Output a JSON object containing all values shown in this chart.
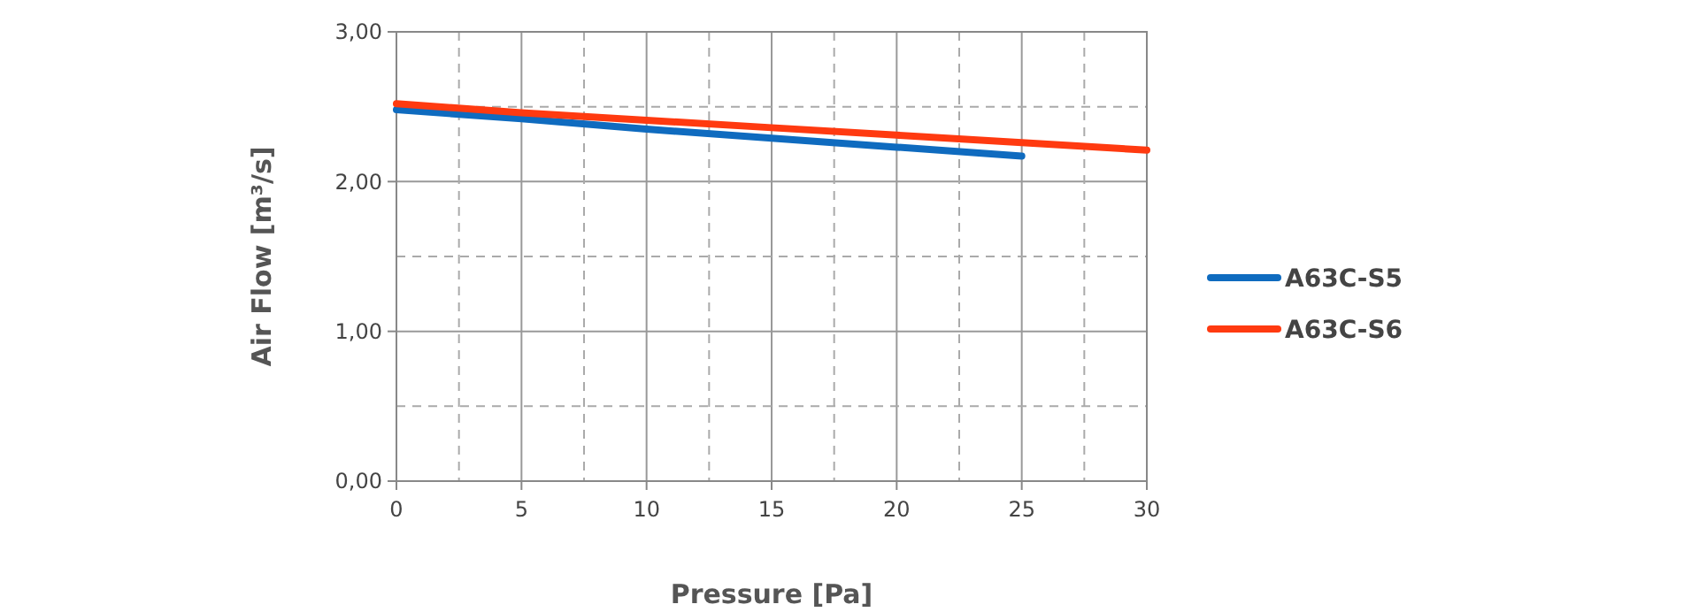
{
  "chart_data": {
    "type": "line",
    "xlabel": "Pressure [Pa]",
    "ylabel": "Air Flow [m³/s]",
    "x": [
      0,
      5,
      10,
      15,
      20,
      25,
      30
    ],
    "series": [
      {
        "name": "A63C-S5",
        "color": "#0f6bbf",
        "values": [
          2.48,
          2.42,
          2.35,
          2.29,
          2.23,
          2.17,
          null
        ]
      },
      {
        "name": "A63C-S6",
        "color": "#ff3a10",
        "values": [
          2.52,
          2.46,
          2.41,
          2.36,
          2.31,
          2.26,
          2.21
        ]
      }
    ],
    "xlim": [
      0,
      30
    ],
    "xticks": [
      0,
      5,
      10,
      15,
      20,
      25,
      30
    ],
    "ylim": [
      0,
      3
    ],
    "yticks": [
      {
        "value": 0,
        "label": "0,00"
      },
      {
        "value": 1,
        "label": "1,00"
      },
      {
        "value": 2,
        "label": "2,00"
      },
      {
        "value": 3,
        "label": "3,00"
      }
    ],
    "grid": true,
    "legend": "right",
    "marker": "none",
    "line_style": "solid"
  }
}
